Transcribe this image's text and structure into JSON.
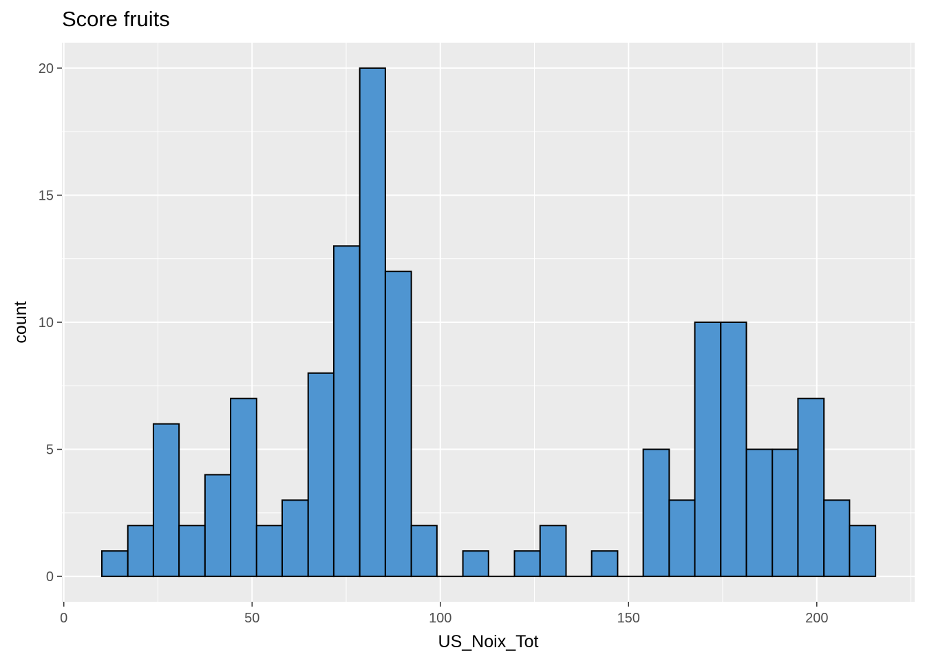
{
  "chart_data": {
    "type": "bar",
    "title": "Score fruits",
    "xlabel": "US_Noix_Tot",
    "ylabel": "count",
    "xlim": [
      -0.5,
      226
    ],
    "ylim": [
      -1,
      21
    ],
    "x_ticks": [
      0,
      50,
      100,
      150,
      200
    ],
    "y_ticks": [
      0,
      5,
      10,
      15,
      20
    ],
    "grid": true,
    "bar_fill": "#4f95d1",
    "bar_stroke": "#000000",
    "panel_background": "#ebebeb",
    "grid_color": "#ffffff",
    "bins": [
      {
        "x0": 10.1,
        "x1": 17.0,
        "count": 1
      },
      {
        "x0": 17.0,
        "x1": 23.8,
        "count": 2
      },
      {
        "x0": 23.8,
        "x1": 30.6,
        "count": 6
      },
      {
        "x0": 30.6,
        "x1": 37.5,
        "count": 2
      },
      {
        "x0": 37.5,
        "x1": 44.3,
        "count": 4
      },
      {
        "x0": 44.3,
        "x1": 51.2,
        "count": 7
      },
      {
        "x0": 51.2,
        "x1": 58.0,
        "count": 2
      },
      {
        "x0": 58.0,
        "x1": 64.9,
        "count": 3
      },
      {
        "x0": 64.9,
        "x1": 71.7,
        "count": 8
      },
      {
        "x0": 71.7,
        "x1": 78.6,
        "count": 13
      },
      {
        "x0": 78.6,
        "x1": 85.4,
        "count": 20
      },
      {
        "x0": 85.4,
        "x1": 92.3,
        "count": 12
      },
      {
        "x0": 92.3,
        "x1": 99.1,
        "count": 2
      },
      {
        "x0": 99.1,
        "x1": 106.0,
        "count": 0
      },
      {
        "x0": 106.0,
        "x1": 112.8,
        "count": 1
      },
      {
        "x0": 112.8,
        "x1": 119.7,
        "count": 0
      },
      {
        "x0": 119.7,
        "x1": 126.5,
        "count": 1
      },
      {
        "x0": 126.5,
        "x1": 133.4,
        "count": 2
      },
      {
        "x0": 133.4,
        "x1": 140.2,
        "count": 0
      },
      {
        "x0": 140.2,
        "x1": 147.1,
        "count": 1
      },
      {
        "x0": 147.1,
        "x1": 153.9,
        "count": 0
      },
      {
        "x0": 153.9,
        "x1": 160.8,
        "count": 5
      },
      {
        "x0": 160.8,
        "x1": 167.6,
        "count": 3
      },
      {
        "x0": 167.6,
        "x1": 174.5,
        "count": 10
      },
      {
        "x0": 174.5,
        "x1": 181.3,
        "count": 10
      },
      {
        "x0": 181.3,
        "x1": 188.2,
        "count": 5
      },
      {
        "x0": 188.2,
        "x1": 195.0,
        "count": 5
      },
      {
        "x0": 195.0,
        "x1": 201.9,
        "count": 7
      },
      {
        "x0": 201.9,
        "x1": 208.7,
        "count": 3
      },
      {
        "x0": 208.7,
        "x1": 215.6,
        "count": 2
      }
    ]
  }
}
